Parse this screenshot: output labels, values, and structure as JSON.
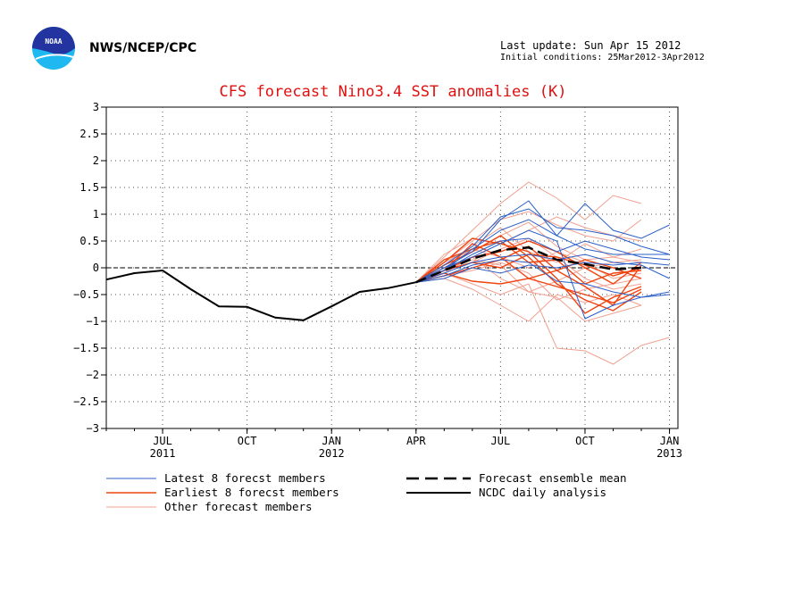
{
  "header": {
    "org": "NWS/NCEP/CPC",
    "last_update": "Last update: Sun Apr 15 2012",
    "initial_conditions": "Initial conditions: 25Mar2012-3Apr2012",
    "logo_text": "NOAA"
  },
  "colors": {
    "title": "#e01010",
    "latest": "#2a5fc8",
    "earliest": "#ee4411",
    "other": "#f0a090",
    "analysis": "#000000"
  },
  "chart_data": {
    "type": "line",
    "title": "CFS forecast Nino3.4 SST anomalies (K)",
    "xlabel": "",
    "ylabel": "",
    "ylim": [
      -3,
      3
    ],
    "xlim": [
      0,
      20.3
    ],
    "yticks": [
      3,
      2.5,
      2,
      1.5,
      1,
      0.5,
      0,
      -0.5,
      -1,
      -1.5,
      -2,
      -2.5,
      -3
    ],
    "ytick_labels": [
      "3",
      "2.5",
      "2",
      "1.5",
      "1",
      "0.5",
      "0",
      "−0.5",
      "−1",
      "−1.5",
      "−2",
      "−2.5",
      "−3"
    ],
    "xticks": [
      {
        "x": 2,
        "label": "JUL",
        "year": "2011"
      },
      {
        "x": 5,
        "label": "OCT",
        "year": ""
      },
      {
        "x": 8,
        "label": "JAN",
        "year": "2012"
      },
      {
        "x": 11,
        "label": "APR",
        "year": ""
      },
      {
        "x": 14,
        "label": "JUL",
        "year": ""
      },
      {
        "x": 17,
        "label": "OCT",
        "year": ""
      },
      {
        "x": 20,
        "label": "JAN",
        "year": "2013"
      }
    ],
    "grid": true,
    "analysis": {
      "name": "NCDC daily analysis",
      "x": [
        0,
        1,
        2,
        3,
        4,
        5,
        6,
        7,
        8,
        9,
        10,
        11
      ],
      "values": [
        -0.22,
        -0.1,
        -0.05,
        -0.4,
        -0.72,
        -0.73,
        -0.93,
        -0.98,
        -0.72,
        -0.45,
        -0.38,
        -0.27
      ]
    },
    "ensemble_mean": {
      "name": "Forecast ensemble mean",
      "x": [
        11,
        12,
        13,
        14,
        15,
        16,
        17,
        18,
        19
      ],
      "values": [
        -0.27,
        -0.05,
        0.17,
        0.33,
        0.38,
        0.15,
        0.07,
        -0.03,
        0.0
      ]
    },
    "members": {
      "x": [
        11,
        12,
        13,
        14,
        15,
        16,
        17,
        18,
        19,
        20
      ],
      "latest": {
        "name": "Latest 8 forecst members",
        "series": [
          [
            -0.27,
            0.0,
            0.3,
            0.9,
            1.25,
            0.6,
            1.2,
            0.7,
            0.55,
            0.8
          ],
          [
            -0.27,
            0.05,
            0.4,
            0.95,
            1.1,
            0.75,
            0.7,
            0.6,
            0.4,
            0.25
          ],
          [
            -0.27,
            -0.05,
            0.25,
            0.5,
            0.55,
            0.3,
            0.5,
            0.35,
            0.2,
            0.15
          ],
          [
            -0.27,
            -0.1,
            0.1,
            0.2,
            0.25,
            0.15,
            0.25,
            0.1,
            0.05,
            -0.2
          ],
          [
            -0.27,
            -0.15,
            0.05,
            0.15,
            0.1,
            -0.25,
            -0.3,
            -0.45,
            -0.55,
            -0.45
          ],
          [
            -0.27,
            0.0,
            0.2,
            0.45,
            0.7,
            0.5,
            -0.95,
            -0.7,
            -0.55,
            -0.5
          ],
          [
            -0.27,
            -0.05,
            0.35,
            0.7,
            0.9,
            0.6,
            0.35,
            0.25,
            0.25,
            0.25
          ],
          [
            -0.27,
            -0.2,
            0.0,
            -0.1,
            0.05,
            0.0,
            0.1,
            0.05,
            0.1,
            0.05
          ]
        ]
      },
      "earliest": {
        "name": "Earliest 8 forecst members",
        "series": [
          [
            -0.27,
            -0.05,
            0.45,
            0.2,
            -0.2,
            -0.35,
            -0.5,
            -0.65,
            -0.4
          ],
          [
            -0.27,
            0.1,
            0.55,
            0.45,
            0.3,
            -0.2,
            -0.85,
            -0.55,
            -0.35
          ],
          [
            -0.27,
            -0.1,
            -0.25,
            -0.3,
            -0.2,
            -0.05,
            -0.35,
            -0.7,
            0.05
          ],
          [
            -0.27,
            0.15,
            0.35,
            0.5,
            0.1,
            0.15,
            -0.3,
            -0.1,
            -0.05
          ],
          [
            -0.27,
            -0.05,
            0.2,
            0.3,
            0.5,
            0.3,
            0.0,
            -0.3,
            0.1
          ],
          [
            -0.27,
            -0.15,
            0.0,
            0.15,
            0.4,
            -0.05,
            0.15,
            0.0,
            -0.2
          ],
          [
            -0.27,
            0.05,
            0.3,
            0.6,
            0.2,
            -0.3,
            -0.6,
            -0.8,
            -0.45
          ],
          [
            -0.27,
            -0.05,
            0.1,
            0.0,
            0.25,
            0.2,
            0.05,
            -0.15,
            0.0
          ]
        ]
      },
      "other": {
        "name": "Other forecast members",
        "series": [
          [
            -0.27,
            0.2,
            0.7,
            1.2,
            1.6,
            1.3,
            0.9,
            1.35,
            1.2
          ],
          [
            -0.27,
            0.1,
            0.5,
            0.9,
            1.05,
            0.8,
            0.6,
            0.5,
            0.9
          ],
          [
            -0.27,
            -0.2,
            -0.4,
            -0.7,
            -1.0,
            -0.5,
            -0.65,
            -0.5,
            -0.7
          ],
          [
            -0.27,
            -0.1,
            -0.3,
            -0.5,
            -0.3,
            -1.5,
            -1.55,
            -1.8,
            -1.45,
            -1.3
          ],
          [
            -0.27,
            0.0,
            0.15,
            0.05,
            -0.45,
            -0.55,
            -1.0,
            -0.85,
            -0.7
          ],
          [
            -0.27,
            0.15,
            0.3,
            0.6,
            0.85,
            0.4,
            0.15,
            0.2,
            0.1
          ],
          [
            -0.27,
            -0.05,
            0.1,
            0.35,
            0.55,
            0.2,
            -0.2,
            -0.4,
            -0.3
          ],
          [
            -0.27,
            0.05,
            0.4,
            0.75,
            0.3,
            0.1,
            0.45,
            0.2,
            0.35
          ],
          [
            -0.27,
            -0.15,
            -0.05,
            0.1,
            -0.1,
            -0.6,
            -0.4,
            -0.3,
            -0.2
          ],
          [
            -0.27,
            0.25,
            0.55,
            0.45,
            0.7,
            0.95,
            0.75,
            0.6,
            0.5
          ],
          [
            -0.27,
            -0.1,
            0.2,
            -0.2,
            -0.45,
            -0.25,
            0.0,
            0.1,
            0.15
          ],
          [
            -0.27,
            0.1,
            0.35,
            0.2,
            0.0,
            0.3,
            0.1,
            -0.2,
            -0.1
          ]
        ]
      }
    },
    "legend_position": "bottom"
  }
}
